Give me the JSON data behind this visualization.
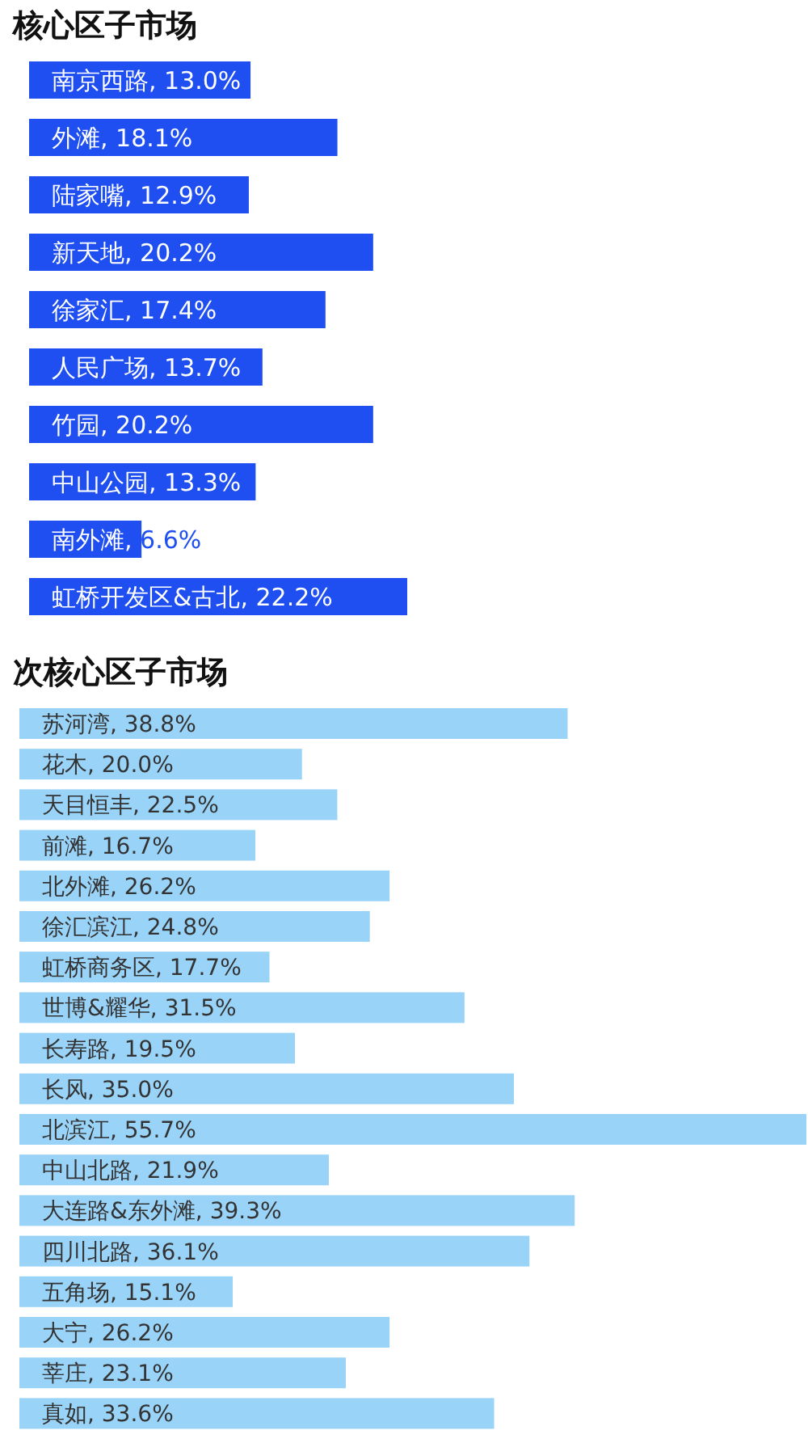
{
  "chart_data": [
    {
      "type": "bar",
      "orientation": "horizontal",
      "title": "核心区子市场",
      "categories": [
        "南京西路",
        "外滩",
        "陆家嘴",
        "新天地",
        "徐家汇",
        "人民广场",
        "竹园",
        "中山公园",
        "南外滩",
        "虹桥开发区&古北"
      ],
      "values": [
        13.0,
        18.1,
        12.9,
        20.2,
        17.4,
        13.7,
        20.2,
        13.3,
        6.6,
        22.2
      ],
      "value_labels": [
        ", 13.0%",
        ", 18.1%",
        ", 12.9%",
        ", 20.2%",
        ", 17.4%",
        ", 13.7%",
        ", 20.2%",
        ", 13.3%",
        ", 6.6%",
        ", 22.2%"
      ],
      "color": "#1f4ff0"
    },
    {
      "type": "bar",
      "orientation": "horizontal",
      "title": "次核心区子市场",
      "categories": [
        "苏河湾",
        "花木",
        "天目恒丰",
        "前滩",
        "北外滩",
        "徐汇滨江",
        "虹桥商务区",
        "世博&耀华",
        "长寿路",
        "长风",
        "北滨江",
        "中山北路",
        "大连路&东外滩",
        "四川北路",
        "五角场",
        "大宁",
        "莘庄",
        "真如"
      ],
      "values": [
        38.8,
        20.0,
        22.5,
        16.7,
        26.2,
        24.8,
        17.7,
        31.5,
        19.5,
        35.0,
        55.7,
        21.9,
        39.3,
        36.1,
        15.1,
        26.2,
        23.1,
        33.6
      ],
      "value_labels": [
        ", 38.8%",
        ", 20.0%",
        ", 22.5%",
        ", 16.7%",
        ", 26.2%",
        ", 24.8%",
        ", 17.7%",
        ", 31.5%",
        ", 19.5%",
        ", 35.0%",
        ", 55.7%",
        ", 21.9%",
        ", 39.3%",
        ", 36.1%",
        ", 15.1%",
        ", 26.2%",
        ", 23.1%",
        ", 33.6%"
      ],
      "color": "#99d3f8"
    }
  ]
}
